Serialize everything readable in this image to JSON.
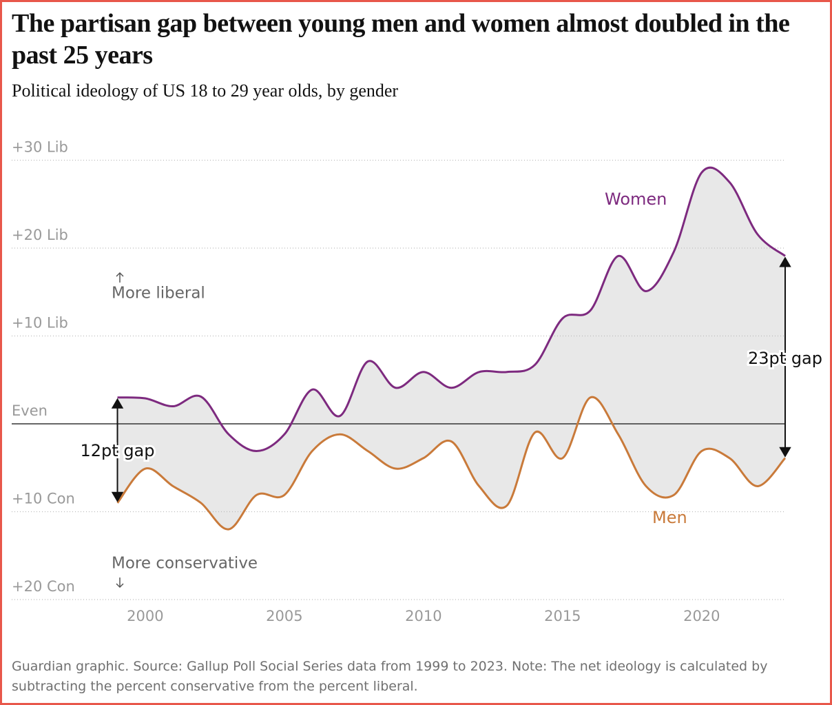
{
  "chart_data": {
    "type": "line",
    "title": "The partisan gap between young men and women almost doubled in the past 25 years",
    "subtitle": "Political ideology of US 18 to 29 year olds, by gender",
    "x": [
      1999,
      2000,
      2001,
      2002,
      2003,
      2004,
      2005,
      2006,
      2007,
      2008,
      2009,
      2010,
      2011,
      2012,
      2013,
      2014,
      2015,
      2016,
      2017,
      2018,
      2019,
      2020,
      2021,
      2022,
      2023
    ],
    "series": [
      {
        "name": "Women",
        "color": "#7d2a7f",
        "values": [
          3.0,
          2.9,
          2.0,
          3.1,
          -1.2,
          -3.1,
          -1.2,
          3.9,
          0.9,
          7.1,
          4.1,
          5.9,
          4.1,
          5.9,
          5.9,
          6.7,
          12.0,
          12.9,
          19.1,
          15.1,
          19.6,
          28.6,
          27.5,
          21.6,
          19.1
        ]
      },
      {
        "name": "Men",
        "color": "#c97a3a",
        "values": [
          -9.0,
          -5.1,
          -7.1,
          -9.0,
          -12.0,
          -8.1,
          -8.1,
          -3.1,
          -1.2,
          -3.1,
          -5.1,
          -3.9,
          -2.0,
          -7.1,
          -9.3,
          -1.0,
          -3.9,
          3.0,
          -1.2,
          -7.1,
          -8.1,
          -3.1,
          -3.9,
          -7.1,
          -3.9
        ]
      }
    ],
    "fill_between_color": "#e8e8e8",
    "xlim": [
      1995.2,
      2023
    ],
    "xticks": [
      2000,
      2005,
      2010,
      2015,
      2020
    ],
    "ylim": [
      -20,
      30
    ],
    "yticks": [
      {
        "value": -20,
        "label": "+20 Con"
      },
      {
        "value": -10,
        "label": "+10 Con"
      },
      {
        "value": 0,
        "label": "Even"
      },
      {
        "value": 10,
        "label": "+10 Lib"
      },
      {
        "value": 20,
        "label": "+20 Lib"
      },
      {
        "value": 30,
        "label": "+30 Lib"
      }
    ],
    "grid": true,
    "annotations": [
      "More liberal",
      "More conservative",
      "12pt gap",
      "23pt gap"
    ],
    "source": "Guardian graphic. Source: Gallup Poll Social Series data from 1999 to 2023. Note: The net ideology is calculated by subtracting the percent conservative from the percent liberal."
  }
}
